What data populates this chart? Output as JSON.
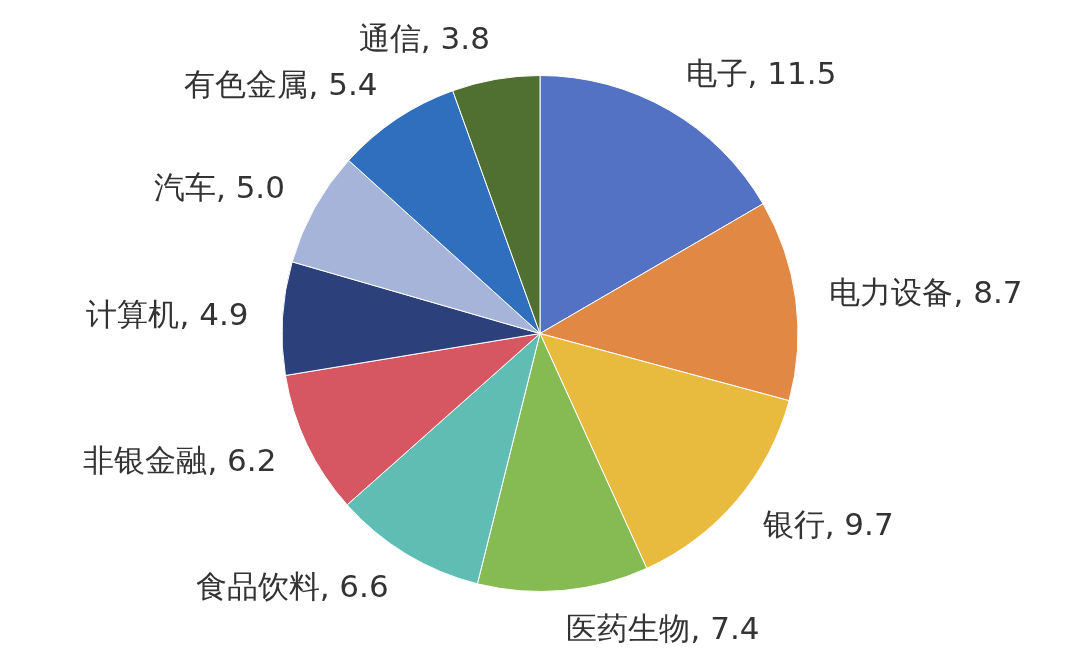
{
  "chart_data": {
    "type": "pie",
    "categories": [
      "电子",
      "电力设备",
      "银行",
      "医药生物",
      "食品饮料",
      "非银金融",
      "计算机",
      "汽车",
      "有色金属",
      "通信"
    ],
    "values": [
      11.5,
      8.7,
      9.7,
      7.4,
      6.6,
      6.2,
      4.9,
      5.0,
      5.4,
      3.8
    ],
    "colors": [
      "#5372c4",
      "#e08844",
      "#e8ba3e",
      "#86bb54",
      "#5fbdb3",
      "#d65762",
      "#2c407b",
      "#a7b4da",
      "#2f6fbd",
      "#4f7030"
    ],
    "value_labels": [
      ", 11.5",
      ", 8.7",
      ", 9.7",
      ", 7.4",
      ", 6.6",
      ", 6.2",
      ", 4.9",
      ", 5.0",
      ", 5.4",
      ", 3.8"
    ]
  }
}
